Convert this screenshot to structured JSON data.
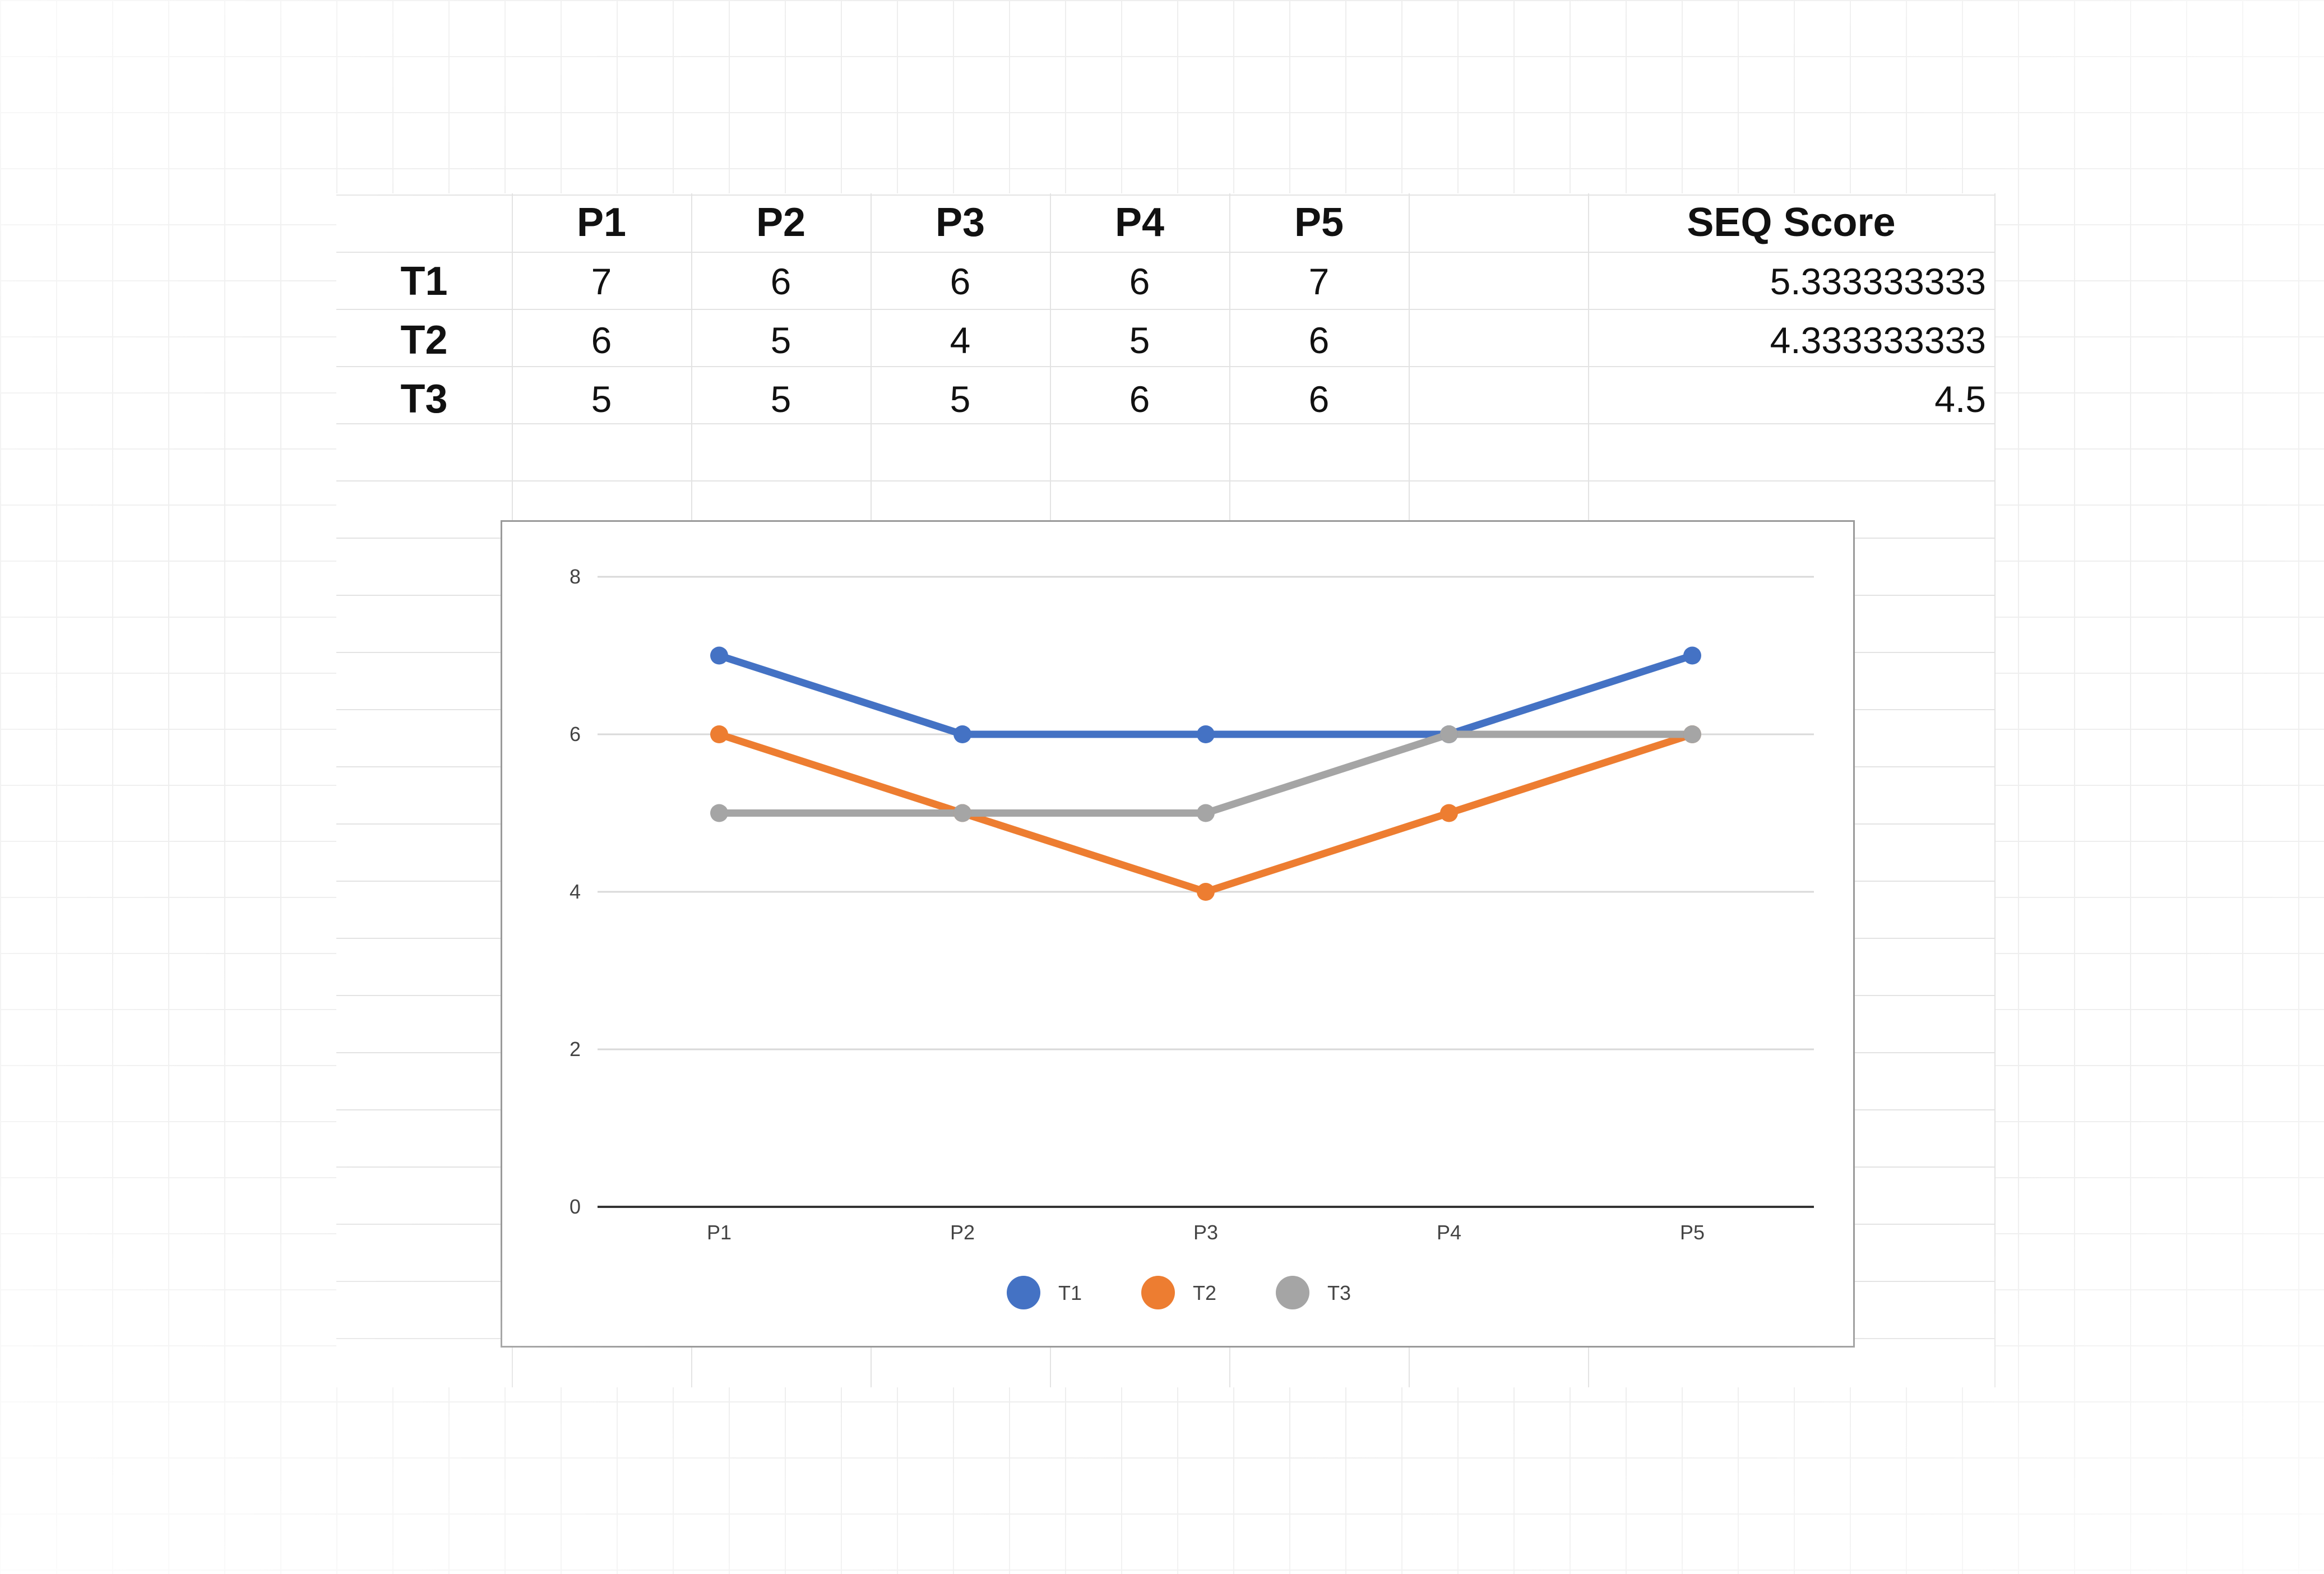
{
  "table": {
    "columns": [
      "P1",
      "P2",
      "P3",
      "P4",
      "P5",
      "",
      "SEQ Score"
    ],
    "rows": [
      {
        "label": "T1",
        "values": [
          "7",
          "6",
          "6",
          "6",
          "7"
        ],
        "seq": "5.333333333"
      },
      {
        "label": "T2",
        "values": [
          "6",
          "5",
          "4",
          "5",
          "6"
        ],
        "seq": "4.333333333"
      },
      {
        "label": "T3",
        "values": [
          "5",
          "5",
          "5",
          "6",
          "6"
        ],
        "seq": "4.5"
      }
    ]
  },
  "chart_data": {
    "type": "line",
    "categories": [
      "P1",
      "P2",
      "P3",
      "P4",
      "P5"
    ],
    "series": [
      {
        "name": "T1",
        "values": [
          7,
          6,
          6,
          6,
          7
        ],
        "color": "#4472C4"
      },
      {
        "name": "T2",
        "values": [
          6,
          5,
          4,
          5,
          6
        ],
        "color": "#ED7D31"
      },
      {
        "name": "T3",
        "values": [
          5,
          5,
          5,
          6,
          6
        ],
        "color": "#A5A5A5"
      }
    ],
    "y_ticks": [
      "0",
      "2",
      "4",
      "6",
      "8"
    ],
    "ylim": [
      0,
      8
    ],
    "grid": true,
    "legend_position": "bottom",
    "title": "",
    "xlabel": "",
    "ylabel": ""
  }
}
